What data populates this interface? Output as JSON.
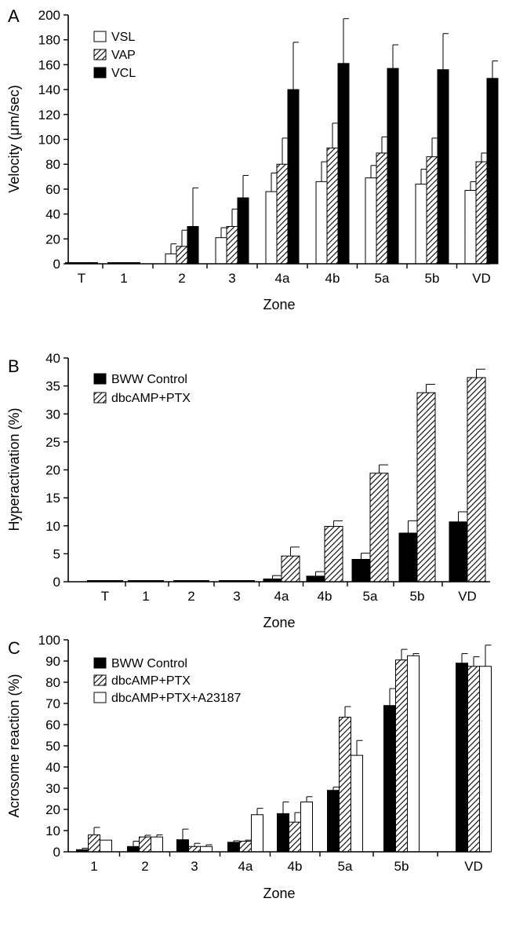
{
  "chart_data": [
    {
      "type": "bar",
      "panel": "A",
      "xlabel": "Zone",
      "ylabel": "Velocity (μm/sec)",
      "ylim": [
        0,
        200
      ],
      "yticks": [
        0,
        20,
        40,
        60,
        80,
        100,
        120,
        140,
        160,
        180,
        200
      ],
      "categories": [
        "T",
        "1",
        "2",
        "3",
        "4a",
        "4b",
        "5a",
        "5b",
        "VD"
      ],
      "legend_position": "top-left",
      "series": [
        {
          "name": "VSL",
          "pattern": "open",
          "values": [
            0,
            0,
            8,
            21,
            58,
            66,
            69,
            64,
            59
          ],
          "errors": [
            0,
            0,
            8,
            8,
            15,
            16,
            10,
            12,
            7
          ]
        },
        {
          "name": "VAP",
          "pattern": "hatched",
          "values": [
            0,
            0,
            14,
            30,
            80,
            93,
            89,
            86,
            82
          ],
          "errors": [
            0,
            0,
            13,
            14,
            21,
            20,
            13,
            15,
            7
          ]
        },
        {
          "name": "VCL",
          "pattern": "solid",
          "values": [
            0,
            0,
            30,
            53,
            140,
            161,
            157,
            156,
            149
          ],
          "errors": [
            0,
            0,
            31,
            18,
            38,
            36,
            19,
            29,
            14
          ]
        }
      ]
    },
    {
      "type": "bar",
      "panel": "B",
      "xlabel": "Zone",
      "ylabel": "Hyperactivation (%)",
      "ylim": [
        0,
        40
      ],
      "yticks": [
        0,
        5,
        10,
        15,
        20,
        25,
        30,
        35,
        40
      ],
      "categories": [
        "T",
        "1",
        "2",
        "3",
        "4a",
        "4b",
        "5a",
        "5b",
        "VD"
      ],
      "legend_position": "top-left",
      "series": [
        {
          "name": "BWW Control",
          "pattern": "solid",
          "values": [
            0,
            0,
            0,
            0,
            0.5,
            1,
            4,
            8.7,
            10.7
          ],
          "errors": [
            0,
            0,
            0,
            0,
            0.6,
            0.8,
            1.1,
            2.2,
            1.8
          ]
        },
        {
          "name": "dbcAMP+PTX",
          "pattern": "hatched",
          "values": [
            0,
            0,
            0,
            0,
            4.6,
            9.9,
            19.4,
            33.8,
            36.5
          ],
          "errors": [
            0,
            0,
            0,
            0,
            1.6,
            1.0,
            1.5,
            1.5,
            1.5
          ]
        }
      ]
    },
    {
      "type": "bar",
      "panel": "C",
      "xlabel": "Zone",
      "ylabel": "Acrosome reaction (%)",
      "ylim": [
        0,
        100
      ],
      "yticks": [
        0,
        10,
        20,
        30,
        40,
        50,
        60,
        70,
        80,
        90,
        100
      ],
      "categories": [
        "1",
        "2",
        "3",
        "4a",
        "4b",
        "5a",
        "5b",
        "VD"
      ],
      "legend_position": "top-left",
      "series": [
        {
          "name": "BWW Control",
          "pattern": "solid",
          "values": [
            1,
            2.5,
            5.7,
            4.5,
            18,
            29,
            69,
            89
          ],
          "errors": [
            0.7,
            2.5,
            5,
            0.7,
            5.5,
            1.5,
            8,
            4.5
          ]
        },
        {
          "name": "dbcAMP+PTX",
          "pattern": "hatched",
          "values": [
            8,
            7,
            2.5,
            5,
            14,
            63.5,
            90.5,
            87.5
          ],
          "errors": [
            3.5,
            0.8,
            1.5,
            0.5,
            4.5,
            5,
            5,
            4.5
          ]
        },
        {
          "name": "dbcAMP+PTX+A23187",
          "pattern": "open",
          "values": [
            5.5,
            7,
            2.5,
            17.5,
            23.5,
            45.5,
            92.5,
            87.5
          ],
          "errors": [
            0,
            1,
            0.8,
            3,
            2.5,
            7,
            1,
            10
          ]
        }
      ]
    }
  ]
}
